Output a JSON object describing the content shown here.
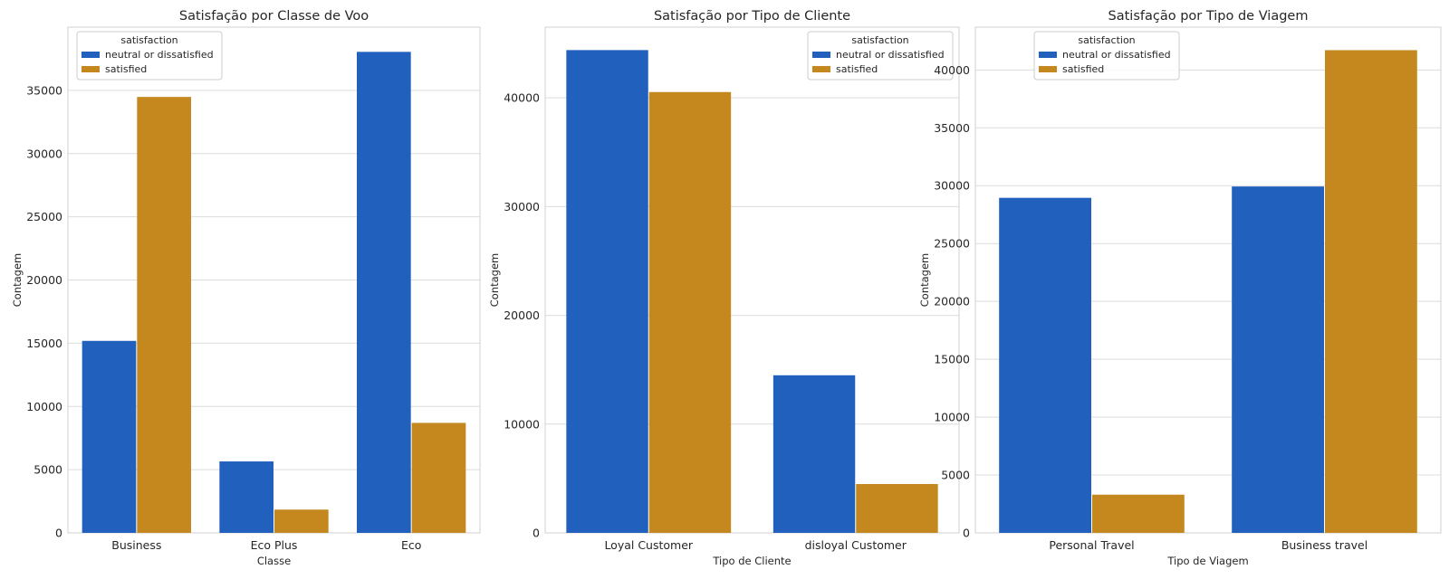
{
  "colors": {
    "neutral": "#2160BC",
    "satisfied": "#C4881F",
    "grid": "#dcdcdc",
    "frame": "#d0d0d0"
  },
  "chart_data": [
    {
      "type": "bar",
      "title": "Satisfação por Classe de Voo",
      "xlabel": "Classe",
      "ylabel": "Contagem",
      "categories": [
        "Business",
        "Eco Plus",
        "Eco"
      ],
      "ylim": [
        0,
        40000
      ],
      "yticks": [
        0,
        5000,
        10000,
        15000,
        20000,
        25000,
        30000,
        35000
      ],
      "legend": {
        "title": "satisfaction",
        "position": "top-left"
      },
      "series": [
        {
          "name": "neutral or dissatisfied",
          "values": [
            15185,
            5650,
            38044
          ]
        },
        {
          "name": "satisfied",
          "values": [
            34480,
            1840,
            8700
          ]
        }
      ]
    },
    {
      "type": "bar",
      "title": "Satisfação por Tipo de Cliente",
      "xlabel": "Tipo de Cliente",
      "ylabel": "Contagem",
      "categories": [
        "Loyal Customer",
        "disloyal Customer"
      ],
      "ylim": [
        0,
        46500
      ],
      "yticks": [
        0,
        10000,
        20000,
        30000,
        40000
      ],
      "legend": {
        "title": "satisfaction",
        "position": "top-right"
      },
      "series": [
        {
          "name": "neutral or dissatisfied",
          "values": [
            44390,
            14490
          ]
        },
        {
          "name": "satisfied",
          "values": [
            40533,
            4490
          ]
        }
      ]
    },
    {
      "type": "bar",
      "title": "Satisfação por Tipo de Viagem",
      "xlabel": "Tipo de Viagem",
      "ylabel": "Contagem",
      "categories": [
        "Personal Travel",
        "Business travel"
      ],
      "ylim": [
        0,
        43700
      ],
      "yticks": [
        0,
        5000,
        10000,
        15000,
        20000,
        25000,
        30000,
        35000,
        40000
      ],
      "legend": {
        "title": "satisfaction",
        "position": "top-left"
      },
      "series": [
        {
          "name": "neutral or dissatisfied",
          "values": [
            28950,
            29930
          ]
        },
        {
          "name": "satisfied",
          "values": [
            3300,
            41710
          ]
        }
      ]
    }
  ]
}
